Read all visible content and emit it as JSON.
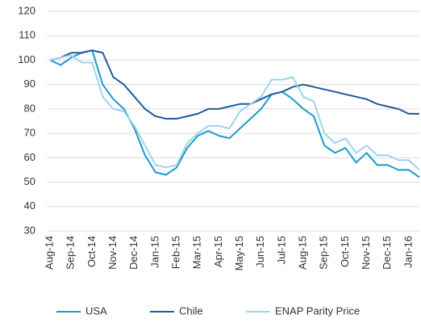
{
  "chart_data": {
    "type": "line",
    "categories": [
      "Aug-14",
      null,
      "Sep-14",
      null,
      "Oct-14",
      null,
      "Nov-14",
      null,
      "Dec-14",
      null,
      "Jan-15",
      null,
      "Feb-15",
      null,
      "Mar-15",
      null,
      "Apr-15",
      null,
      "May-15",
      null,
      "Jun-15",
      null,
      "Jul-15",
      null,
      "Aug-15",
      null,
      "Sep-15",
      null,
      "Oct-15",
      null,
      "Nov-15",
      null,
      "Dec-15",
      null,
      "Jan-16",
      null
    ],
    "series": [
      {
        "name": "USA",
        "color": "#1a9bc9",
        "values": [
          100,
          98,
          101,
          103,
          104,
          90,
          84,
          80,
          72,
          61,
          54,
          53,
          56,
          64,
          69,
          71,
          69,
          68,
          72,
          76,
          80,
          86,
          87,
          84,
          80,
          77,
          65,
          62,
          64,
          58,
          62,
          57,
          57,
          55,
          55,
          52
        ]
      },
      {
        "name": "Chile",
        "color": "#1f5a9a",
        "values": [
          100,
          101,
          103,
          103,
          104,
          103,
          93,
          90,
          85,
          80,
          77,
          76,
          76,
          77,
          78,
          80,
          80,
          81,
          82,
          82,
          84,
          86,
          87,
          89,
          90,
          89,
          88,
          87,
          86,
          85,
          84,
          82,
          81,
          80,
          78,
          78
        ]
      },
      {
        "name": "ENAP Parity Price",
        "color": "#9fd4ea",
        "values": [
          100,
          101,
          102,
          99,
          99,
          85,
          80,
          79,
          73,
          65,
          57,
          56,
          57,
          66,
          70,
          73,
          73,
          72,
          79,
          82,
          85,
          92,
          92,
          93,
          85,
          83,
          70,
          66,
          68,
          62,
          65,
          61,
          61,
          59,
          59,
          55
        ]
      }
    ],
    "ylim": [
      30,
      120
    ],
    "yticks": [
      30,
      40,
      50,
      60,
      70,
      80,
      90,
      100,
      110,
      120
    ],
    "grid": true,
    "legend": "bottom"
  }
}
